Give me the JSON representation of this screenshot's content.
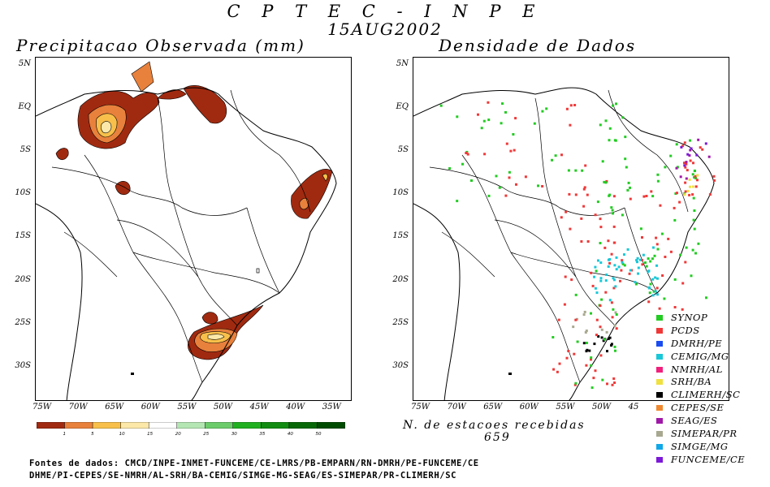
{
  "header": {
    "title": "C P T E C - I N P E",
    "date": "15AUG2002"
  },
  "left_panel": {
    "title": "Precipitacao Observada (mm)"
  },
  "right_panel": {
    "title": "Densidade de Dados"
  },
  "lat_labels": [
    "5N",
    "EQ",
    "5S",
    "10S",
    "15S",
    "20S",
    "25S",
    "30S"
  ],
  "lon_labels_left": [
    "75W",
    "70W",
    "65W",
    "60W",
    "55W",
    "50W",
    "45W",
    "40W",
    "35W"
  ],
  "lon_labels_right": [
    "75W",
    "70W",
    "65W",
    "60W",
    "55W",
    "50W",
    "45"
  ],
  "colorbar": {
    "labels": [
      "1",
      "5",
      "10",
      "15",
      "20",
      "25",
      "30",
      "35",
      "40",
      "50"
    ],
    "colors": [
      "#a02a10",
      "#e8813c",
      "#f8c04a",
      "#fce8a8",
      "#ffffff",
      "#b4e6b4",
      "#6ccc6c",
      "#20b020",
      "#128c12",
      "#086808",
      "#004c00"
    ]
  },
  "legend": [
    {
      "label": "SYNOP",
      "color": "#22cc22"
    },
    {
      "label": "PCDS",
      "color": "#f03838"
    },
    {
      "label": "DMRH/PE",
      "color": "#1a4cf0"
    },
    {
      "label": "CEMIG/MG",
      "color": "#18c8d8"
    },
    {
      "label": "NMRH/AL",
      "color": "#f0207c"
    },
    {
      "label": "SRH/BA",
      "color": "#f0e040"
    },
    {
      "label": "CLIMERH/SC",
      "color": "#000000"
    },
    {
      "label": "CEPES/SE",
      "color": "#f08830"
    },
    {
      "label": "SEAG/ES",
      "color": "#a018a8"
    },
    {
      "label": "SIMEPAR/PR",
      "color": "#a8a890"
    },
    {
      "label": "SIMGE/MG",
      "color": "#10a8e8"
    },
    {
      "label": "FUNCEME/CE",
      "color": "#7c18d8"
    }
  ],
  "stations": {
    "label": "N. de estacoes recebidas",
    "count": "659"
  },
  "sources": {
    "line1": "Fontes de dados: CMCD/INPE-INMET-FUNCEME/CE-LMRS/PB-EMPARN/RN-DMRH/PE-FUNCEME/CE",
    "line2": "DHME/PI-CEPES/SE-NMRH/AL-SRH/BA-CEMIG/SIMGE-MG-SEAG/ES-SIMEPAR/PR-CLIMERH/SC"
  }
}
